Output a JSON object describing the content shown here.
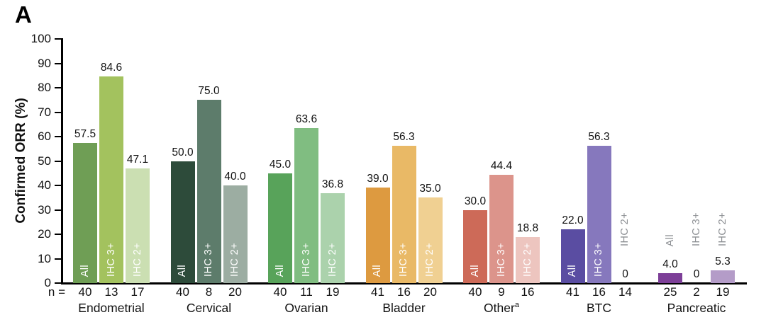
{
  "panel_label": "A",
  "colors": {
    "background": "#ffffff",
    "axis": "#000000",
    "text": "#1a1a1a",
    "muted_bar_label": "#8c8f93"
  },
  "chart_data": {
    "type": "bar",
    "title": "",
    "xlabel": "",
    "ylabel": "Confirmed ORR (%)",
    "ylim": [
      0,
      100
    ],
    "yticks": [
      0,
      10,
      20,
      30,
      40,
      50,
      60,
      70,
      80,
      90,
      100
    ],
    "grid": false,
    "legend_position": "none",
    "n_row_prefix": "n =",
    "bar_series_names": [
      "All",
      "IHC 3+",
      "IHC 2+"
    ],
    "categories": [
      "Endometrial",
      "Cervical",
      "Ovarian",
      "Bladder",
      "Other",
      "BTC",
      "Pancreatic"
    ],
    "groups": [
      {
        "label": "Endometrial",
        "sup": "",
        "bars": [
          {
            "series": "All",
            "value": 57.5,
            "display": "57.5",
            "n": "40",
            "color": "#6f9e55",
            "label_pos": "inside"
          },
          {
            "series": "IHC 3+",
            "value": 84.6,
            "display": "84.6",
            "n": "13",
            "color": "#a3c25e",
            "label_pos": "inside"
          },
          {
            "series": "IHC 2+",
            "value": 47.1,
            "display": "47.1",
            "n": "17",
            "color": "#cbdfb2",
            "label_pos": "inside"
          }
        ]
      },
      {
        "label": "Cervical",
        "sup": "",
        "bars": [
          {
            "series": "All",
            "value": 50.0,
            "display": "50.0",
            "n": "40",
            "color": "#2d4b3a",
            "label_pos": "inside"
          },
          {
            "series": "IHC 3+",
            "value": 75.0,
            "display": "75.0",
            "n": "8",
            "color": "#5d7c6b",
            "label_pos": "inside"
          },
          {
            "series": "IHC 2+",
            "value": 40.0,
            "display": "40.0",
            "n": "20",
            "color": "#9cada2",
            "label_pos": "inside"
          }
        ]
      },
      {
        "label": "Ovarian",
        "sup": "",
        "bars": [
          {
            "series": "All",
            "value": 45.0,
            "display": "45.0",
            "n": "40",
            "color": "#58a35a",
            "label_pos": "inside"
          },
          {
            "series": "IHC 3+",
            "value": 63.6,
            "display": "63.6",
            "n": "11",
            "color": "#80bd81",
            "label_pos": "inside"
          },
          {
            "series": "IHC 2+",
            "value": 36.8,
            "display": "36.8",
            "n": "19",
            "color": "#abd2ac",
            "label_pos": "inside"
          }
        ]
      },
      {
        "label": "Bladder",
        "sup": "",
        "bars": [
          {
            "series": "All",
            "value": 39.0,
            "display": "39.0",
            "n": "41",
            "color": "#dd9a40",
            "label_pos": "inside"
          },
          {
            "series": "IHC 3+",
            "value": 56.3,
            "display": "56.3",
            "n": "16",
            "color": "#e9b966",
            "label_pos": "inside"
          },
          {
            "series": "IHC 2+",
            "value": 35.0,
            "display": "35.0",
            "n": "20",
            "color": "#f0d092",
            "label_pos": "inside"
          }
        ]
      },
      {
        "label": "Other",
        "sup": "a",
        "bars": [
          {
            "series": "All",
            "value": 30.0,
            "display": "30.0",
            "n": "40",
            "color": "#cd6a58",
            "label_pos": "inside"
          },
          {
            "series": "IHC 3+",
            "value": 44.4,
            "display": "44.4",
            "n": "9",
            "color": "#dc948b",
            "label_pos": "inside"
          },
          {
            "series": "IHC 2+",
            "value": 18.8,
            "display": "18.8",
            "n": "16",
            "color": "#edc5bf",
            "label_pos": "inside"
          }
        ]
      },
      {
        "label": "BTC",
        "sup": "",
        "bars": [
          {
            "series": "All",
            "value": 22.0,
            "display": "22.0",
            "n": "41",
            "color": "#5a4da2",
            "label_pos": "inside"
          },
          {
            "series": "IHC 3+",
            "value": 56.3,
            "display": "56.3",
            "n": "16",
            "color": "#8678bd",
            "label_pos": "inside"
          },
          {
            "series": "IHC 2+",
            "value": 0,
            "display": "0",
            "n": "14",
            "color": null,
            "label_pos": "above"
          }
        ]
      },
      {
        "label": "Pancreatic",
        "sup": "",
        "bars": [
          {
            "series": "All",
            "value": 4.0,
            "display": "4.0",
            "n": "25",
            "color": "#7d3f98",
            "label_pos": "above"
          },
          {
            "series": "IHC 3+",
            "value": 0,
            "display": "0",
            "n": "2",
            "color": null,
            "label_pos": "above"
          },
          {
            "series": "IHC 2+",
            "value": 5.3,
            "display": "5.3",
            "n": "19",
            "color": "#b49cc8",
            "label_pos": "above"
          }
        ]
      }
    ]
  }
}
